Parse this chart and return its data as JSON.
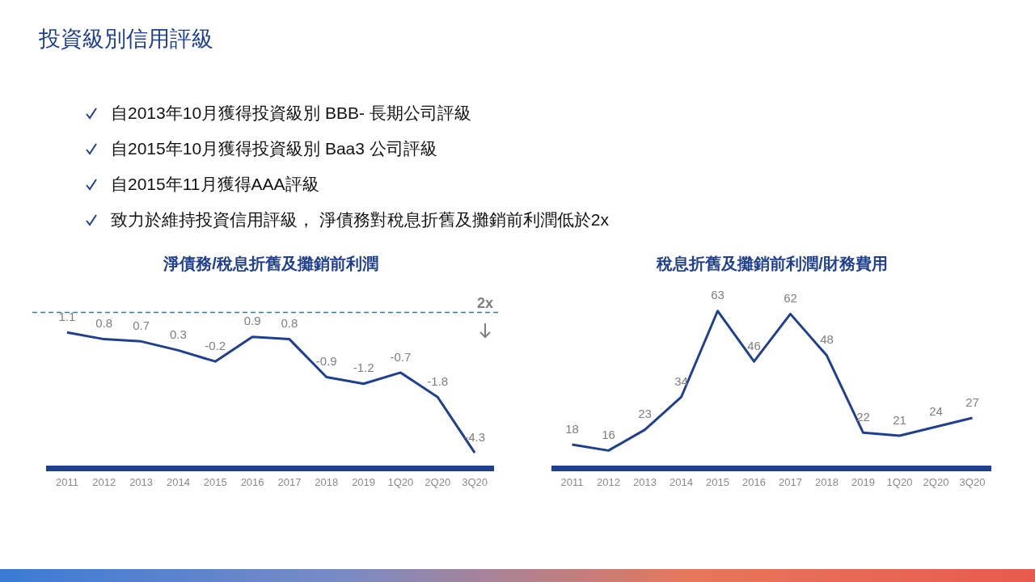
{
  "chart_data": [
    {
      "type": "other",
      "title": "投資級別信用評級",
      "annotations": [
        "自2013年10月獲得投資級別 BBB- 長期公司評級",
        "自2015年10月獲得投資級別 Baa3 公司評級",
        "自2015年11月獲得AAA評級",
        "致力於維持投資信用評級， 淨債務對稅息折舊及攤銷前利潤低於2x"
      ]
    },
    {
      "type": "line",
      "title": "淨債務/稅息折舊及攤銷前利潤",
      "categories": [
        "2011",
        "2012",
        "2013",
        "2014",
        "2015",
        "2016",
        "2017",
        "2018",
        "2019",
        "1Q20",
        "2Q20",
        "3Q20"
      ],
      "series": [
        {
          "color": "#1f3f8f",
          "values": [
            1.1,
            0.8,
            0.7,
            0.3,
            -0.2,
            0.9,
            0.8,
            -0.9,
            -1.2,
            -0.7,
            -1.8,
            -4.3
          ]
        }
      ],
      "tick_labels": "x",
      "data_labels": true,
      "marker": "none",
      "line_style": "solid",
      "grid": false,
      "legend": false,
      "ref_lines": [
        {
          "axis": "y",
          "value": 2,
          "label": "2x",
          "color": "#2e7d9a",
          "line_style": "dashed"
        }
      ]
    },
    {
      "type": "line",
      "title": "稅息折舊及攤銷前利潤/財務費用",
      "categories": [
        "2011",
        "2012",
        "2013",
        "2014",
        "2015",
        "2016",
        "2017",
        "2018",
        "2019",
        "1Q20",
        "2Q20",
        "3Q20"
      ],
      "series": [
        {
          "color": "#1f3f8f",
          "values": [
            18,
            16,
            23,
            34,
            63,
            46,
            62,
            48,
            22,
            21,
            24,
            27
          ]
        }
      ],
      "tick_labels": "x",
      "data_labels": true,
      "marker": "none",
      "line_style": "solid",
      "grid": false,
      "legend": false
    }
  ]
}
